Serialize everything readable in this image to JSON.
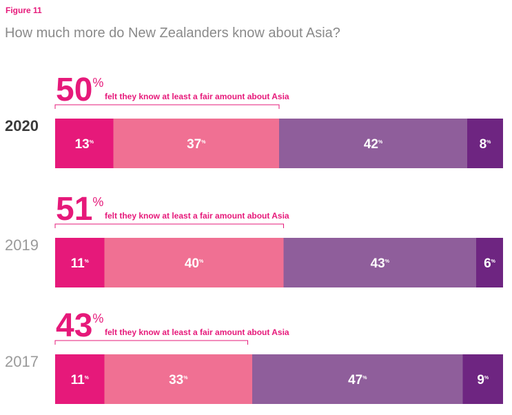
{
  "chart_data": {
    "type": "stacked-bar",
    "figure_label": "Figure 11",
    "title": "How much more do New Zealanders know about Asia?",
    "categories": [
      "2020",
      "2019",
      "2017"
    ],
    "unit": "%",
    "xlim": [
      0,
      100
    ],
    "series": [
      {
        "color": "#e6197a",
        "values": [
          13,
          11,
          11
        ]
      },
      {
        "color": "#f07093",
        "values": [
          37,
          40,
          33
        ]
      },
      {
        "color": "#8f5e9b",
        "values": [
          42,
          43,
          47
        ]
      },
      {
        "color": "#6e2581",
        "values": [
          8,
          6,
          9
        ]
      }
    ],
    "annotations": [
      {
        "value": 50,
        "text": "felt they know at least a fair amount about Asia"
      },
      {
        "value": 51,
        "text": "felt they know at least a fair amount about Asia"
      },
      {
        "value": 43,
        "text": "felt they know at least a fair amount about Asia"
      }
    ]
  }
}
